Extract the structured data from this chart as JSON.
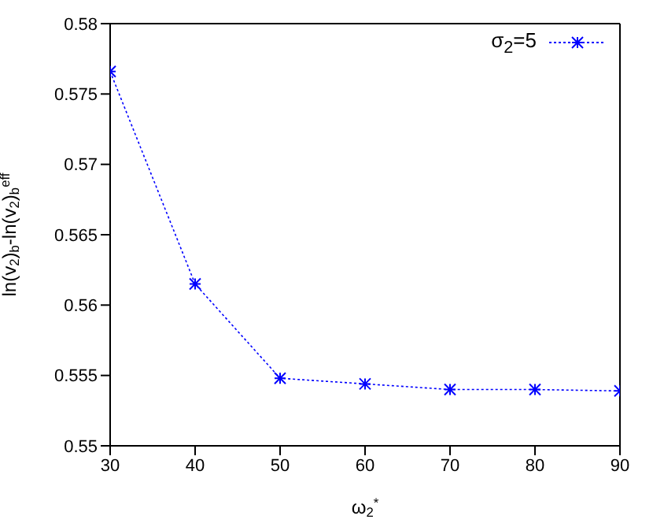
{
  "chart_data": {
    "type": "line",
    "xlabel": "ω$_{2}$$^{*}$",
    "ylabel": "ln(v$_{2}$)$_{b}$-ln(v$_{2}$)$_{b}$$^{eff}$",
    "x": [
      30,
      40,
      50,
      60,
      70,
      80,
      90
    ],
    "series": [
      {
        "name": "σ$_{2}$=5",
        "color": "#0000ff",
        "values": [
          0.5766,
          0.5615,
          0.5548,
          0.5544,
          0.554,
          0.554,
          0.5539
        ]
      }
    ],
    "xlim": [
      30,
      90
    ],
    "xticks": [
      30,
      40,
      50,
      60,
      70,
      80,
      90
    ],
    "ylim": [
      0.55,
      0.58
    ],
    "yticks": [
      0.55,
      0.555,
      0.56,
      0.565,
      0.57,
      0.575,
      0.58
    ],
    "grid": false,
    "legend": "top right",
    "marker": "cross",
    "line_style": "dotted"
  }
}
